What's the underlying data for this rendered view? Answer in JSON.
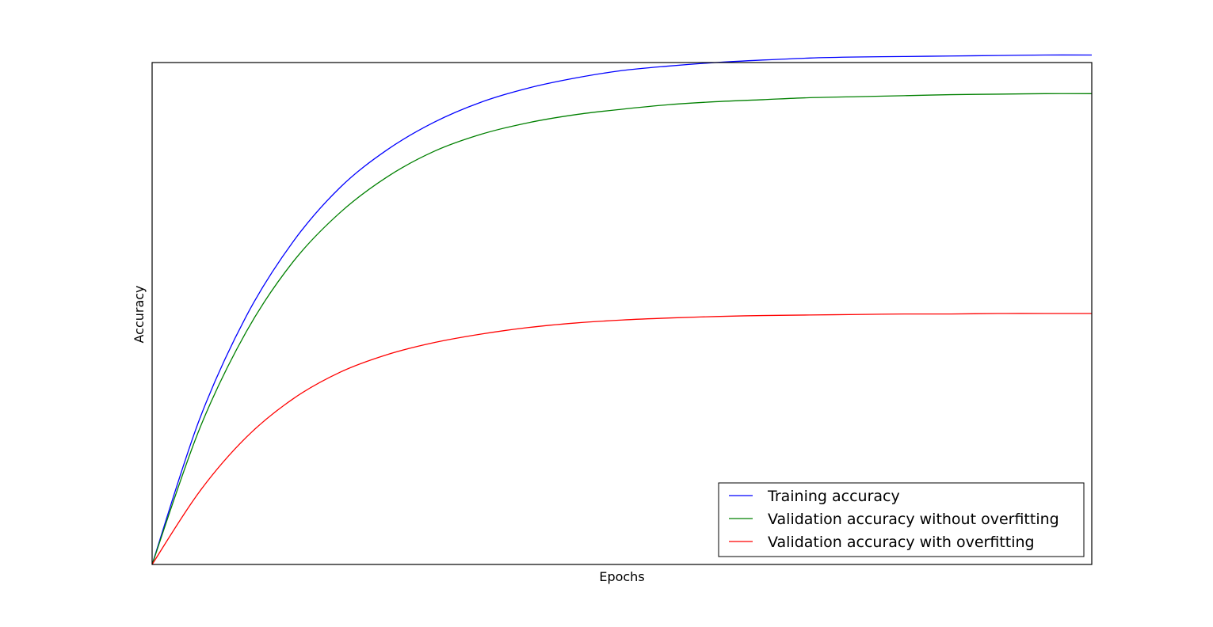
{
  "chart_data": {
    "type": "line",
    "title": "",
    "xlabel": "Epochs",
    "ylabel": "Accuracy",
    "xlim": [
      0,
      1
    ],
    "ylim": [
      0,
      1
    ],
    "grid": false,
    "x_ticks": "none",
    "y_ticks": "none",
    "legend_position": "bottom-right",
    "x": [
      0,
      0.05,
      0.1,
      0.15,
      0.2,
      0.25,
      0.3,
      0.35,
      0.4,
      0.45,
      0.5,
      0.55,
      0.6,
      0.65,
      0.7,
      0.75,
      0.8,
      0.85,
      0.9,
      0.95,
      1.0
    ],
    "series": [
      {
        "name": "Training accuracy",
        "color": "#0000ff",
        "values": [
          0.0,
          0.287,
          0.494,
          0.643,
          0.751,
          0.826,
          0.881,
          0.921,
          0.949,
          0.969,
          0.984,
          0.993,
          1.0,
          1.005,
          1.009,
          1.011,
          1.012,
          1.013,
          1.014,
          1.015,
          1.015
        ]
      },
      {
        "name": "Validation accuracy without overfitting",
        "color": "#008000",
        "values": [
          0.0,
          0.268,
          0.463,
          0.603,
          0.701,
          0.772,
          0.823,
          0.857,
          0.88,
          0.896,
          0.907,
          0.916,
          0.922,
          0.926,
          0.93,
          0.932,
          0.934,
          0.936,
          0.937,
          0.938,
          0.938
        ]
      },
      {
        "name": "Validation accuracy with overfitting",
        "color": "#ff0000",
        "values": [
          0.0,
          0.144,
          0.253,
          0.33,
          0.383,
          0.418,
          0.442,
          0.459,
          0.472,
          0.481,
          0.487,
          0.491,
          0.494,
          0.496,
          0.497,
          0.498,
          0.499,
          0.499,
          0.5,
          0.5,
          0.5
        ]
      }
    ]
  }
}
